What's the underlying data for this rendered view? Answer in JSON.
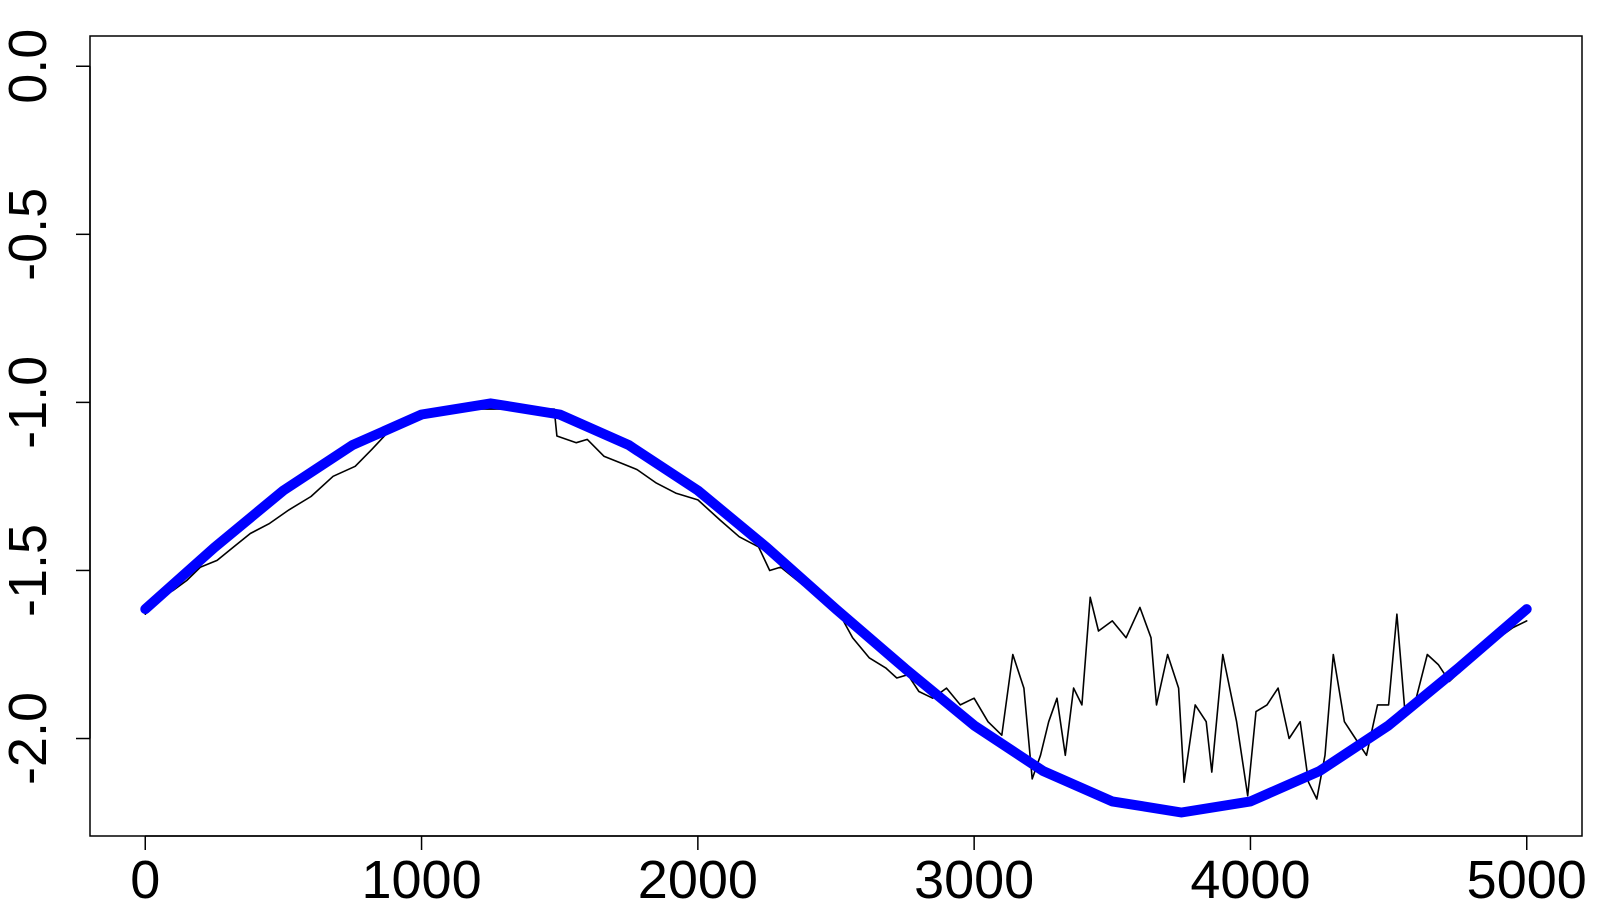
{
  "chart_data": {
    "type": "line",
    "title": "",
    "xlabel": "",
    "ylabel": "",
    "xlim": [
      -200,
      5200
    ],
    "ylim": [
      -2.29,
      0.09
    ],
    "x_ticks": [
      0,
      1000,
      2000,
      3000,
      4000,
      5000
    ],
    "x_tick_labels": [
      "0",
      "1000",
      "2000",
      "3000",
      "4000",
      "5000"
    ],
    "y_ticks": [
      -2.0,
      -1.5,
      -1.0,
      -0.5,
      0.0
    ],
    "y_tick_labels": [
      "-2.0",
      "-1.5",
      "-1.0",
      "-0.5",
      "0.0"
    ],
    "grid": false,
    "legend": "none",
    "colors": {
      "smooth_series": "#0000ff",
      "noisy_series": "#000000"
    },
    "series": [
      {
        "key": "smooth",
        "style": "thick",
        "x": [
          0,
          250,
          500,
          750,
          1000,
          1250,
          1500,
          1750,
          2000,
          2250,
          2500,
          2750,
          3000,
          3250,
          3500,
          3750,
          4000,
          4250,
          4500,
          4750,
          5000
        ],
        "values": [
          -1.615,
          -1.432,
          -1.262,
          -1.127,
          -1.036,
          -1.003,
          -1.036,
          -1.127,
          -1.262,
          -1.432,
          -1.615,
          -1.792,
          -1.961,
          -2.097,
          -2.187,
          -2.22,
          -2.187,
          -2.097,
          -1.961,
          -1.792,
          -1.615
        ]
      },
      {
        "key": "noisy",
        "style": "thin",
        "x": [
          0,
          30,
          60,
          100,
          150,
          200,
          260,
          320,
          380,
          450,
          520,
          600,
          680,
          760,
          820,
          900,
          1000,
          1100,
          1200,
          1300,
          1400,
          1480,
          1490,
          1560,
          1600,
          1660,
          1720,
          1780,
          1850,
          1920,
          2000,
          2080,
          2150,
          2220,
          2260,
          2300,
          2360,
          2420,
          2480,
          2520,
          2560,
          2620,
          2680,
          2720,
          2760,
          2800,
          2850,
          2900,
          2950,
          3000,
          3050,
          3100,
          3140,
          3180,
          3210,
          3240,
          3270,
          3300,
          3330,
          3360,
          3390,
          3420,
          3450,
          3500,
          3550,
          3600,
          3640,
          3660,
          3700,
          3740,
          3760,
          3800,
          3840,
          3860,
          3900,
          3950,
          3990,
          4020,
          4060,
          4100,
          4140,
          4180,
          4210,
          4240,
          4270,
          4300,
          4340,
          4380,
          4420,
          4460,
          4500,
          4530,
          4560,
          4600,
          4640,
          4680,
          4720,
          4760,
          4800,
          4850,
          4900,
          4950,
          5000
        ],
        "values": [
          -1.63,
          -1.6,
          -1.58,
          -1.56,
          -1.53,
          -1.49,
          -1.47,
          -1.43,
          -1.39,
          -1.36,
          -1.32,
          -1.28,
          -1.22,
          -1.19,
          -1.14,
          -1.07,
          -1.03,
          -1.02,
          -1.02,
          -1.02,
          -1.02,
          -1.02,
          -1.1,
          -1.12,
          -1.11,
          -1.16,
          -1.18,
          -1.2,
          -1.24,
          -1.27,
          -1.29,
          -1.35,
          -1.4,
          -1.43,
          -1.5,
          -1.49,
          -1.53,
          -1.57,
          -1.6,
          -1.64,
          -1.7,
          -1.76,
          -1.79,
          -1.82,
          -1.81,
          -1.86,
          -1.88,
          -1.85,
          -1.9,
          -1.88,
          -1.95,
          -1.99,
          -1.75,
          -1.85,
          -2.12,
          -2.05,
          -1.95,
          -1.88,
          -2.05,
          -1.85,
          -1.9,
          -1.58,
          -1.68,
          -1.65,
          -1.7,
          -1.61,
          -1.7,
          -1.9,
          -1.75,
          -1.85,
          -2.13,
          -1.9,
          -1.95,
          -2.1,
          -1.75,
          -1.95,
          -2.17,
          -1.92,
          -1.9,
          -1.85,
          -2.0,
          -1.95,
          -2.13,
          -2.18,
          -2.05,
          -1.75,
          -1.95,
          -2.0,
          -2.05,
          -1.9,
          -1.9,
          -1.63,
          -1.93,
          -1.88,
          -1.75,
          -1.78,
          -1.83,
          -1.8,
          -1.77,
          -1.73,
          -1.7,
          -1.67,
          -1.65
        ]
      }
    ]
  }
}
